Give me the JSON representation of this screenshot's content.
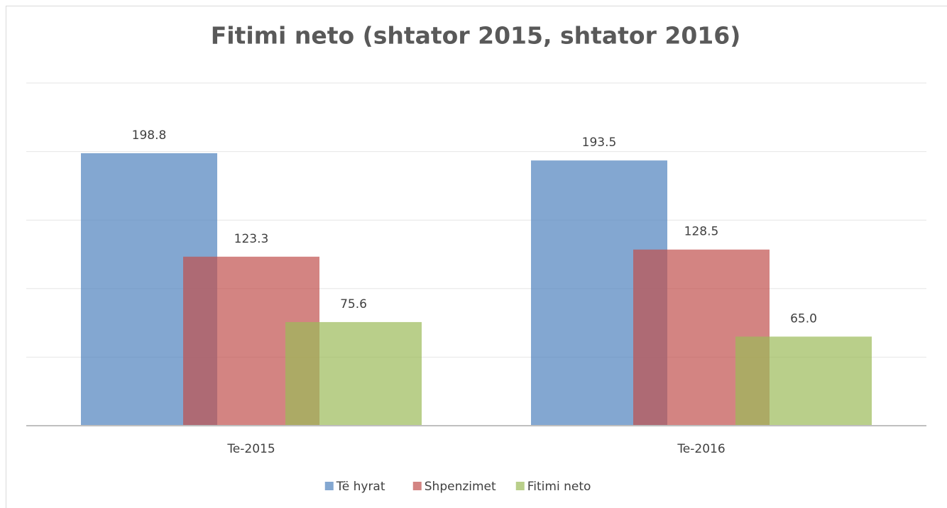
{
  "chart_data": {
    "type": "bar",
    "title": "Fitimi neto (shtator 2015, shtator 2016)",
    "categories": [
      "Te-2015",
      "Te-2016"
    ],
    "series": [
      {
        "name": "Të hyrat",
        "color": "#4f81bd",
        "values": [
          198.8,
          193.5
        ],
        "value_labels": [
          "198.8",
          "193.5"
        ]
      },
      {
        "name": "Shpenzimet",
        "color": "#c0504d",
        "values": [
          123.3,
          128.5
        ],
        "value_labels": [
          "123.3",
          "128.5"
        ]
      },
      {
        "name": "Fitimi neto",
        "color": "#9bbb59",
        "values": [
          75.6,
          65.0
        ],
        "value_labels": [
          "75.6",
          "65.0"
        ]
      }
    ],
    "ylim": [
      0,
      250
    ],
    "yticks": [
      0,
      50,
      100,
      150,
      200,
      250
    ],
    "grid": true,
    "legend": "bottom"
  }
}
